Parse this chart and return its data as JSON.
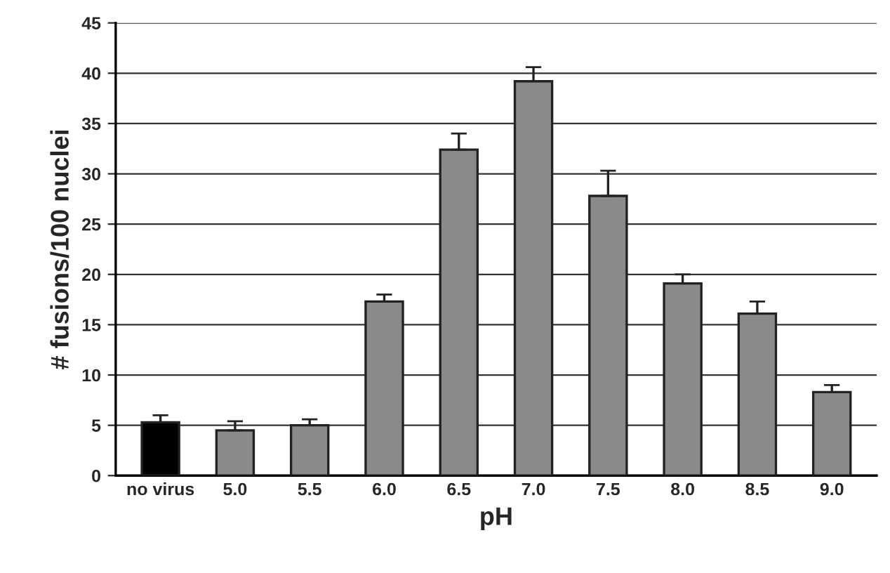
{
  "chart_data": {
    "type": "bar",
    "xlabel": "pH",
    "ylabel": "# fusions/100 nuclei",
    "categories": [
      "no virus",
      "5.0",
      "5.5",
      "6.0",
      "6.5",
      "7.0",
      "7.5",
      "8.0",
      "8.5",
      "9.0"
    ],
    "values": [
      5.3,
      4.5,
      5.0,
      17.3,
      32.4,
      39.2,
      27.8,
      19.1,
      16.1,
      8.3
    ],
    "errors": [
      0.7,
      0.9,
      0.6,
      0.7,
      1.6,
      1.4,
      2.5,
      0.9,
      1.2,
      0.7
    ],
    "colors": [
      "#000000",
      "#8a8a8a",
      "#8a8a8a",
      "#8a8a8a",
      "#8a8a8a",
      "#8a8a8a",
      "#8a8a8a",
      "#8a8a8a",
      "#8a8a8a",
      "#8a8a8a"
    ],
    "ylim": [
      0,
      45
    ],
    "yticks": [
      0,
      5,
      10,
      15,
      20,
      25,
      30,
      35,
      40,
      45
    ],
    "grid": "y"
  }
}
